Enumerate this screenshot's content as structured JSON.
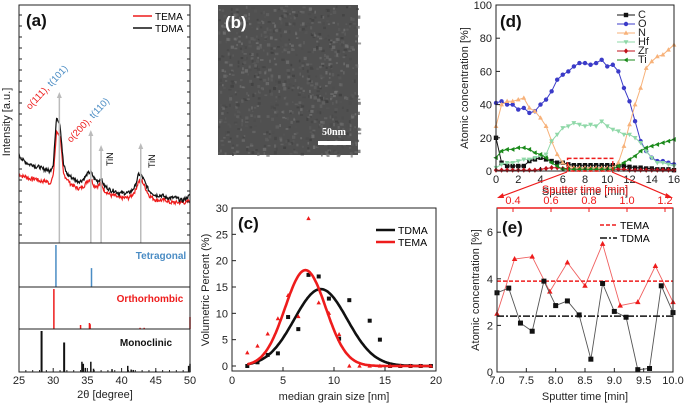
{
  "colors": {
    "tema": "#ee1c1c",
    "tdma": "#111111",
    "tetragonal": "#4a8cc4",
    "orthorhombic": "#ee1c1c",
    "monoclinic": "#111111",
    "arrow_gray": "#bbbbbb",
    "zoom_red": "#ee1c1c"
  },
  "chart_data": [
    {
      "panel": "(a)",
      "type": "line",
      "xlabel": "2θ [degree]",
      "ylabel": "Intensity [a.u.]",
      "xlim": [
        25,
        50
      ],
      "xticks": [
        "25",
        "30",
        "35",
        "40",
        "45",
        "50"
      ],
      "legend": [
        "TEMA",
        "TDMA"
      ],
      "legend_position": "top-right",
      "x": [
        25,
        25.5,
        26,
        26.5,
        27,
        27.5,
        28,
        28.5,
        29,
        29.5,
        30,
        30.5,
        31,
        31.5,
        32,
        32.5,
        33,
        33.5,
        34,
        34.5,
        35,
        35.5,
        36,
        36.5,
        37,
        37.5,
        38,
        38.5,
        39,
        39.5,
        40,
        40.5,
        41,
        41.5,
        42,
        42.5,
        43,
        43.5,
        44,
        44.5,
        45,
        45.5,
        46,
        46.5,
        47,
        47.5,
        48,
        48.5,
        49,
        49.5,
        50
      ],
      "series": [
        {
          "name": "TDMA",
          "values": [
            37,
            35,
            34,
            33,
            33,
            32,
            32,
            31,
            31,
            30,
            33,
            53,
            50,
            33,
            29,
            28,
            27,
            26,
            26,
            27,
            29,
            30,
            27,
            26,
            27,
            24,
            23,
            22,
            22,
            21,
            21,
            21,
            21,
            22,
            24,
            29,
            28,
            25,
            22,
            21,
            20,
            20,
            20,
            19,
            19,
            19,
            19,
            18,
            18,
            19,
            20
          ]
        },
        {
          "name": "TEMA",
          "values": [
            29,
            28,
            28,
            27,
            27,
            27,
            26,
            26,
            26,
            25,
            28,
            47,
            45,
            29,
            27,
            25,
            24,
            23,
            23,
            24,
            26,
            27,
            24,
            24,
            25,
            22,
            21,
            20,
            20,
            19,
            19,
            19,
            19,
            20,
            22,
            26,
            26,
            23,
            20,
            19,
            18,
            18,
            18,
            18,
            17,
            17,
            17,
            17,
            17,
            17,
            18
          ]
        }
      ],
      "annotations": [
        {
          "parts": [
            {
              "text": "o(111), ",
              "color": "red"
            },
            {
              "text": "t(101)",
              "color": "blue"
            }
          ],
          "x": 30.9
        },
        {
          "parts": [
            {
              "text": "o(200), ",
              "color": "red"
            },
            {
              "text": "t(110)",
              "color": "blue"
            }
          ],
          "x": 35.5
        },
        {
          "parts": [
            {
              "text": "TiN",
              "color": "black"
            }
          ],
          "x": 37.0
        },
        {
          "parts": [
            {
              "text": "TiN",
              "color": "black"
            }
          ],
          "x": 42.8
        }
      ],
      "reference_patterns": [
        {
          "name": "Tetragonal",
          "lines": [
            [
              30.4,
              1.0
            ],
            [
              35.6,
              0.45
            ]
          ]
        },
        {
          "name": "Orthorhombic",
          "lines": [
            [
              30.1,
              1.0
            ],
            [
              34.0,
              0.1
            ],
            [
              35.3,
              0.15
            ],
            [
              35.4,
              0.12
            ],
            [
              42.7,
              0.03
            ],
            [
              43.3,
              0.03
            ],
            [
              50.0,
              0.3
            ]
          ]
        },
        {
          "name": "Monoclinic",
          "lines": [
            [
              28.3,
              1.0
            ],
            [
              31.6,
              0.72
            ],
            [
              34.2,
              0.25
            ],
            [
              34.4,
              0.2
            ],
            [
              34.7,
              0.1
            ],
            [
              35.5,
              0.25
            ],
            [
              35.9,
              0.08
            ],
            [
              38.6,
              0.07
            ],
            [
              40.9,
              0.15
            ],
            [
              41.4,
              0.06
            ],
            [
              41.7,
              0.05
            ],
            [
              45.0,
              0.03
            ],
            [
              49.8,
              0.15
            ],
            [
              50.0,
              0.2
            ]
          ]
        }
      ]
    },
    {
      "panel": "(b)",
      "type": "image",
      "scale_bar": "50nm"
    },
    {
      "panel": "(c)",
      "type": "scatter",
      "xlabel": "median grain size [nm]",
      "ylabel": "Volumetric Percent (%)",
      "xlim": [
        0,
        20
      ],
      "ylim": [
        -1,
        30
      ],
      "xticks": [
        "0",
        "5",
        "10",
        "15",
        "20"
      ],
      "yticks": [
        "0",
        "5",
        "10",
        "15",
        "20",
        "25",
        "30"
      ],
      "legend_position": "top-right",
      "series": [
        {
          "name": "TDMA",
          "marker": "square",
          "points": [
            [
              1.5,
              0
            ],
            [
              2.5,
              0.7
            ],
            [
              3.5,
              2.1
            ],
            [
              4.5,
              2.4
            ],
            [
              5.5,
              9.3
            ],
            [
              6.5,
              7
            ],
            [
              7.5,
              17.3
            ],
            [
              8.5,
              17
            ],
            [
              9.5,
              12.8
            ],
            [
              10.5,
              5.2
            ],
            [
              11.5,
              12.5
            ],
            [
              13.5,
              8.6
            ],
            [
              14.5,
              5
            ],
            [
              15.5,
              0
            ],
            [
              16.5,
              0
            ],
            [
              17.5,
              0
            ],
            [
              18.5,
              0
            ],
            [
              19.5,
              0
            ]
          ],
          "fit": {
            "center": 8.7,
            "amplitude": 14.6,
            "sigma": 2.6
          }
        },
        {
          "name": "TEMA",
          "marker": "triangle",
          "points": [
            [
              1.5,
              2.5
            ],
            [
              2.5,
              3.8
            ],
            [
              3.5,
              6.1
            ],
            [
              4.5,
              9
            ],
            [
              5.5,
              13.4
            ],
            [
              6.5,
              9.4
            ],
            [
              7.5,
              28
            ],
            [
              8.5,
              12
            ],
            [
              9.5,
              10
            ],
            [
              10.5,
              6
            ],
            [
              11.5,
              0
            ],
            [
              12.5,
              0
            ],
            [
              13.5,
              0
            ],
            [
              14.5,
              0
            ],
            [
              15.5,
              0
            ],
            [
              16.5,
              0
            ],
            [
              17.5,
              0
            ],
            [
              18.5,
              0
            ],
            [
              19.5,
              0
            ]
          ],
          "fit": {
            "center": 7.2,
            "amplitude": 18.2,
            "sigma": 2.0
          }
        }
      ]
    },
    {
      "panel": "(d)",
      "type": "line",
      "xlabel": "Sputter time [min]",
      "ylabel": "Atomic concentration [%]",
      "xlim": [
        0,
        16
      ],
      "ylim": [
        0,
        100
      ],
      "xticks": [
        "0",
        "2",
        "4",
        "6",
        "8",
        "10",
        "12",
        "14",
        "16"
      ],
      "yticks": [
        "0",
        "20",
        "40",
        "60",
        "80",
        "100"
      ],
      "legend_position": "top-right",
      "x": [
        0,
        0.5,
        1,
        1.5,
        2,
        2.5,
        3,
        3.5,
        4,
        4.5,
        5,
        5.5,
        6,
        6.5,
        7,
        7.5,
        8,
        8.5,
        9,
        9.5,
        10,
        10.5,
        11,
        11.5,
        12,
        12.5,
        13,
        13.5,
        14,
        14.5,
        15,
        15.5,
        16
      ],
      "series": [
        {
          "name": "C",
          "marker": "square",
          "color": "#111111",
          "values": [
            20,
            5,
            3,
            3,
            3,
            3,
            6,
            7,
            8,
            7,
            6,
            5,
            5,
            4,
            3.5,
            3.5,
            3.5,
            3.5,
            3.5,
            3.5,
            3.5,
            3.5,
            3,
            3,
            2.5,
            2,
            2,
            1.5,
            1.5,
            1,
            1,
            1,
            0.5
          ]
        },
        {
          "name": "O",
          "marker": "circle",
          "color": "#3b3bc8",
          "values": [
            41,
            42,
            40,
            40,
            37,
            38,
            35,
            36,
            40,
            43,
            48,
            55,
            58,
            60,
            63,
            65,
            65,
            64,
            65,
            67,
            63,
            64,
            60,
            50,
            42,
            30,
            18,
            12,
            8,
            6,
            6,
            5,
            4
          ]
        },
        {
          "name": "N",
          "marker": "triangle-up",
          "color": "#f7b27a",
          "values": [
            27,
            40,
            42,
            42,
            43,
            44,
            38,
            36,
            32,
            27,
            18,
            10,
            5,
            3,
            2,
            2,
            2,
            2,
            2,
            2,
            2,
            2,
            5,
            15,
            28,
            40,
            50,
            62,
            66,
            69,
            70,
            73,
            76
          ]
        },
        {
          "name": "Hf",
          "marker": "triangle-down",
          "color": "#8fd8a8",
          "values": [
            2,
            4,
            5,
            5,
            6,
            7,
            7,
            8,
            9,
            10,
            18,
            22,
            26,
            27,
            29,
            28,
            27,
            28,
            27,
            30,
            27,
            25,
            24,
            22,
            22,
            20,
            17,
            12,
            8,
            5,
            5,
            4,
            3
          ]
        },
        {
          "name": "Zr",
          "marker": "diamond",
          "color": "#c0101a",
          "values": [
            0.5,
            0.5,
            0.5,
            0.5,
            0.5,
            0.5,
            0.5,
            0.5,
            1,
            1.5,
            2,
            2,
            1.5,
            1.5,
            1,
            1,
            1,
            1,
            1,
            1,
            1,
            1,
            1,
            1,
            0.5,
            0.5,
            0.5,
            0.5,
            0.5,
            0.5,
            0.5,
            0.5,
            0.5
          ]
        },
        {
          "name": "Ti",
          "marker": "triangle-left",
          "color": "#1a8a1a",
          "values": [
            8,
            12,
            13,
            13,
            14,
            14,
            13,
            11,
            10,
            8,
            5,
            3,
            1,
            1,
            1,
            1,
            1,
            1,
            1,
            1,
            1,
            1,
            3,
            5,
            7,
            9,
            12,
            14,
            15,
            16,
            17,
            18,
            19
          ]
        }
      ],
      "zoom_region": {
        "x": [
          6.7,
          10.5
        ],
        "y": [
          0,
          7
        ]
      }
    },
    {
      "panel": "(e)",
      "type": "line",
      "xlabel": "Sputter time [min]",
      "ylabel": "Atomic concentration [%]",
      "xlim": [
        7.0,
        10.0
      ],
      "ylim": [
        0,
        7
      ],
      "xticks": [
        "7.0",
        "7.5",
        "8.0",
        "8.5",
        "9.0",
        "9.5",
        "10.0"
      ],
      "yticks": [
        "0",
        "2",
        "4",
        "6"
      ],
      "top_axis": {
        "label": "Sputter time [min]",
        "ticks": [
          "0.4",
          "0.6",
          "0.8",
          "1.0",
          "1.2"
        ],
        "values": [
          0.4,
          0.6,
          0.8,
          1.0,
          1.2
        ]
      },
      "legend_position": "top-right",
      "series": [
        {
          "name": "TEMA",
          "marker": "triangle",
          "mean": 3.9,
          "points": [
            [
              7.0,
              2.5
            ],
            [
              7.3,
              4.85
            ],
            [
              7.6,
              4.95
            ],
            [
              7.9,
              3.45
            ],
            [
              8.2,
              4.7
            ],
            [
              8.5,
              3.7
            ],
            [
              8.8,
              5.5
            ],
            [
              9.1,
              2.85
            ],
            [
              9.4,
              3.0
            ],
            [
              9.7,
              4.55
            ],
            [
              10.0,
              3.0
            ]
          ]
        },
        {
          "name": "TDMA",
          "marker": "square",
          "mean": 2.4,
          "points": [
            [
              7.0,
              3.4
            ],
            [
              7.2,
              3.6
            ],
            [
              7.4,
              2.1
            ],
            [
              7.6,
              1.75
            ],
            [
              7.8,
              3.9
            ],
            [
              8.0,
              2.85
            ],
            [
              8.2,
              3.05
            ],
            [
              8.4,
              2.45
            ],
            [
              8.6,
              0.55
            ],
            [
              8.8,
              3.8
            ],
            [
              9.0,
              2.6
            ],
            [
              9.2,
              2.35
            ],
            [
              9.4,
              0.1
            ],
            [
              9.6,
              0.15
            ],
            [
              9.8,
              3.7
            ],
            [
              10.0,
              2.55
            ]
          ]
        }
      ]
    }
  ]
}
